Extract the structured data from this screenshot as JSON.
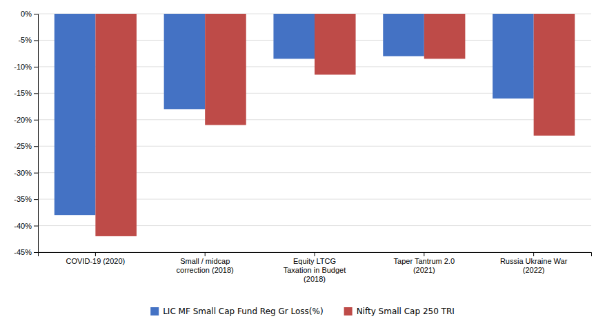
{
  "chart_data": {
    "type": "bar",
    "categories": [
      "COVID-19 (2020)",
      "Small / midcap\ncorrection (2018)",
      "Equity LTCG\nTaxation in Budget\n(2018)",
      "Taper Tantrum 2.0\n(2021)",
      "Russia Ukraine War\n(2022)"
    ],
    "series": [
      {
        "name": "LIC MF Small Cap Fund Reg Gr Loss(%)",
        "color": "#4472C4",
        "values": [
          -38.0,
          -18.0,
          -8.5,
          -8.0,
          -16.0
        ]
      },
      {
        "name": "Nifty Small Cap 250 TRI",
        "color": "#BE4B48",
        "values": [
          -42.0,
          -21.0,
          -11.5,
          -8.5,
          -23.0
        ]
      }
    ],
    "ylim": [
      -45,
      0
    ],
    "yticks": [
      {
        "value": 0,
        "label": "0%"
      },
      {
        "value": -5,
        "label": "-5%"
      },
      {
        "value": -10,
        "label": "-10%"
      },
      {
        "value": -15,
        "label": "-15%"
      },
      {
        "value": -20,
        "label": "-20%"
      },
      {
        "value": -25,
        "label": "-25%"
      },
      {
        "value": -30,
        "label": "-30%"
      },
      {
        "value": -35,
        "label": "-35%"
      },
      {
        "value": -40,
        "label": "-40%"
      },
      {
        "value": -45,
        "label": "-45%"
      }
    ],
    "grid": true,
    "legend": "bottom"
  }
}
